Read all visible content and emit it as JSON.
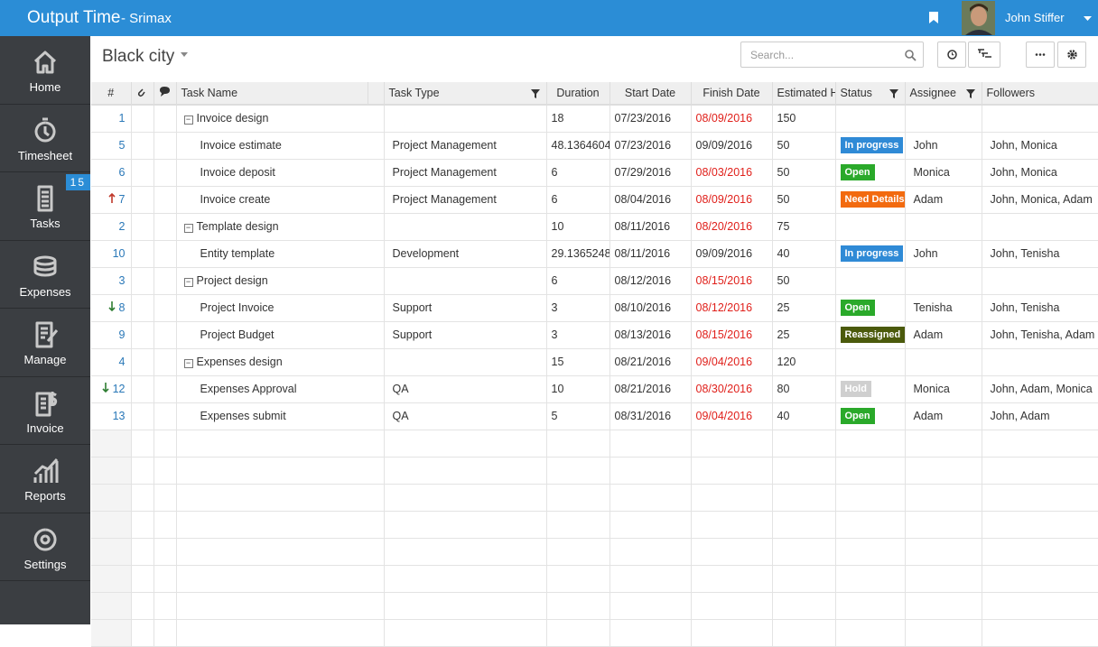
{
  "header": {
    "app_title": "Output Time",
    "company": "- Srimax",
    "user": "John Stiffer"
  },
  "sidebar": {
    "items": [
      {
        "label": "Home"
      },
      {
        "label": "Timesheet"
      },
      {
        "label": "Tasks",
        "badge": "15"
      },
      {
        "label": "Expenses"
      },
      {
        "label": "Manage"
      },
      {
        "label": "Invoice"
      },
      {
        "label": "Reports"
      },
      {
        "label": "Settings"
      }
    ]
  },
  "toolbar": {
    "project": "Black city",
    "search_placeholder": "Search..."
  },
  "status_colors": {
    "In progress": "#2f8ad6",
    "Open": "#2aa92a",
    "Need Details": "#f26a0f",
    "Reassigned": "#4b5a0c",
    "Hold": "#cfcfcf"
  },
  "table": {
    "columns": [
      "#",
      "Task Name",
      "Task Type",
      "Duration",
      "Start Date",
      "Finish Date",
      "Estimated H",
      "Status",
      "Assignee",
      "Followers"
    ],
    "rows": [
      {
        "id": 1,
        "group": true,
        "name": "Invoice design",
        "duration": 18,
        "start": "07/23/2016",
        "finish": "08/09/2016",
        "overdue": true,
        "estimate": 150
      },
      {
        "id": 5,
        "name": "Invoice estimate",
        "type": "Project Management",
        "duration": 48.1364604,
        "start": "07/23/2016",
        "finish": "09/09/2016",
        "estimate": 50,
        "status": "In progress",
        "assignee": "John",
        "followers": "John, Monica"
      },
      {
        "id": 6,
        "name": "Invoice deposit",
        "type": "Project Management",
        "duration": 6,
        "start": "07/29/2016",
        "finish": "08/03/2016",
        "overdue": true,
        "estimate": 50,
        "status": "Open",
        "assignee": "Monica",
        "followers": "John, Monica"
      },
      {
        "id": 7,
        "arrow": "up",
        "name": "Invoice create",
        "type": "Project Management",
        "duration": 6,
        "start": "08/04/2016",
        "finish": "08/09/2016",
        "overdue": true,
        "estimate": 50,
        "status": "Need Details",
        "assignee": "Adam",
        "followers": "John, Monica, Adam"
      },
      {
        "id": 2,
        "group": true,
        "name": "Template design",
        "duration": 10,
        "start": "08/11/2016",
        "finish": "08/20/2016",
        "overdue": true,
        "estimate": 75
      },
      {
        "id": 10,
        "name": "Entity template",
        "type": "Development",
        "duration": 29.1365248,
        "start": "08/11/2016",
        "finish": "09/09/2016",
        "estimate": 40,
        "status": "In progress",
        "assignee": "John",
        "followers": "John, Tenisha"
      },
      {
        "id": 3,
        "group": true,
        "name": "Project design",
        "duration": 6,
        "start": "08/12/2016",
        "finish": "08/15/2016",
        "overdue": true,
        "estimate": 50
      },
      {
        "id": 8,
        "arrow": "down",
        "name": "Project Invoice",
        "type": "Support",
        "duration": 3,
        "start": "08/10/2016",
        "finish": "08/12/2016",
        "overdue": true,
        "estimate": 25,
        "status": "Open",
        "assignee": "Tenisha",
        "followers": "John, Tenisha"
      },
      {
        "id": 9,
        "name": "Project Budget",
        "type": "Support",
        "duration": 3,
        "start": "08/13/2016",
        "finish": "08/15/2016",
        "overdue": true,
        "estimate": 25,
        "status": "Reassigned",
        "assignee": "Adam",
        "followers": "John, Tenisha, Adam"
      },
      {
        "id": 4,
        "group": true,
        "name": "Expenses design",
        "duration": 15,
        "start": "08/21/2016",
        "finish": "09/04/2016",
        "overdue": true,
        "estimate": 120
      },
      {
        "id": 12,
        "arrow": "down",
        "name": "Expenses Approval",
        "type": "QA",
        "duration": 10,
        "start": "08/21/2016",
        "finish": "08/30/2016",
        "overdue": true,
        "estimate": 80,
        "status": "Hold",
        "assignee": "Monica",
        "followers": "John, Adam, Monica"
      },
      {
        "id": 13,
        "name": "Expenses submit",
        "type": "QA",
        "duration": 5,
        "start": "08/31/2016",
        "finish": "09/04/2016",
        "overdue": true,
        "estimate": 40,
        "status": "Open",
        "assignee": "Adam",
        "followers": "John, Adam"
      }
    ]
  }
}
